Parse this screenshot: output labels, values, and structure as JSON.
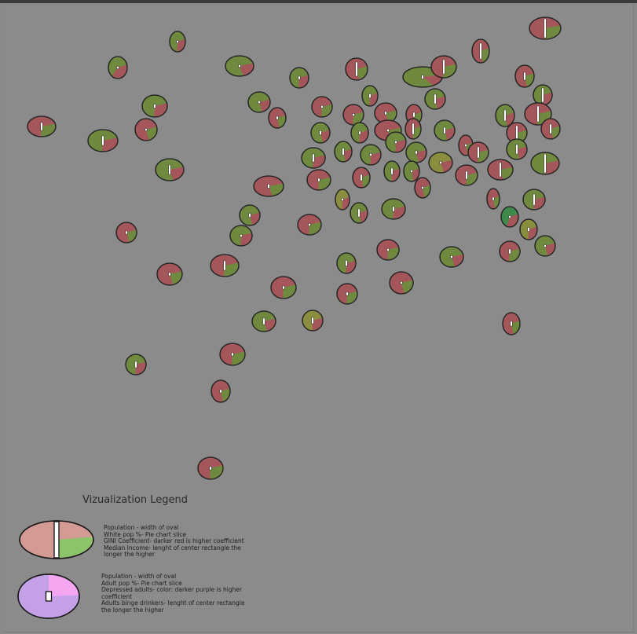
{
  "legend": {
    "title": "Vizualization Legend",
    "entry1": {
      "lines": [
        "Population - width of oval",
        "White pop %- Pie chart slice",
        "GINI Coefficient- darker red  is higher coefficient",
        "Median Income- lenght of center rectangle the",
        "longer the higher"
      ],
      "fill_color": "#d49a94",
      "slice_color": "#8cc46a"
    },
    "entry2": {
      "lines": [
        "Population - width of oval",
        "Adult pop %- Pie chart slice",
        "Depressed adults- color: darker purple  is higher",
        "coefficient",
        "Adults binge drinkers- lenght of center rectangle",
        "the longer the higher"
      ],
      "fill_color": "#c4a0e6",
      "slice_color": "#f4a6f0"
    }
  },
  "colors": {
    "background": "#8b8b8b",
    "red_fill": "#a5565a",
    "green_fill": "#6f8a3e",
    "olive_fill": "#8a8c3e",
    "dark_green_fill": "#3f8a4a"
  }
}
